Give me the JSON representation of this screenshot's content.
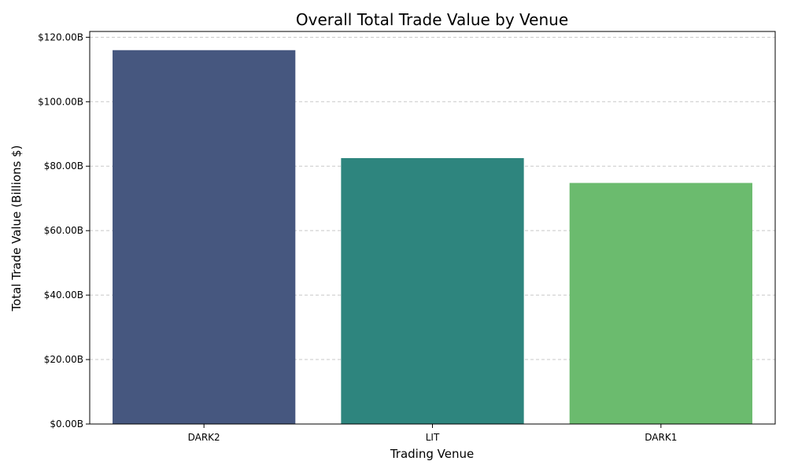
{
  "chart_data": {
    "type": "bar",
    "title": "Overall Total Trade Value by Venue",
    "xlabel": "Trading Venue",
    "ylabel": "Total Trade Value (Billions $)",
    "categories": [
      "DARK2",
      "LIT",
      "DARK1"
    ],
    "values": [
      116.0,
      82.5,
      74.8
    ],
    "colors": [
      "#46577f",
      "#2e857e",
      "#6bbb6e"
    ],
    "ylim": [
      0,
      121.8
    ],
    "yticks": [
      0,
      20,
      40,
      60,
      80,
      100,
      120
    ],
    "ytick_labels": [
      "$0.00B",
      "$20.00B",
      "$40.00B",
      "$60.00B",
      "$80.00B",
      "$100.00B",
      "$120.00B"
    ],
    "grid": "y-dashed",
    "legend": "none"
  }
}
